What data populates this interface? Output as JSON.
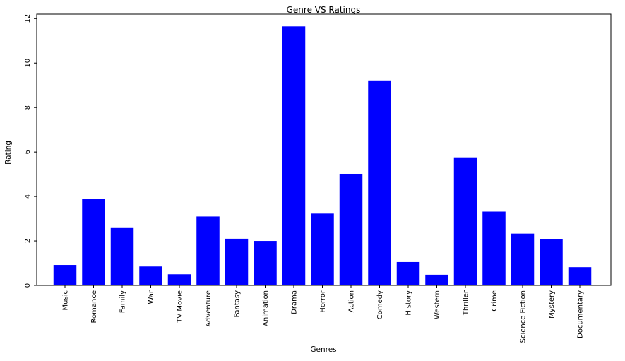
{
  "chart_data": {
    "type": "bar",
    "title": "Genre VS Ratings",
    "xlabel": "Genres",
    "ylabel": "Rating",
    "categories": [
      "Music",
      "Romance",
      "Family",
      "War",
      "TV Movie",
      "Adventure",
      "Fantasy",
      "Animation",
      "Drama",
      "Horror",
      "Action",
      "Comedy",
      "History",
      "Western",
      "Thriller",
      "Crime",
      "Science Fiction",
      "Mystery",
      "Documentary"
    ],
    "values": [
      0.92,
      3.9,
      2.58,
      0.85,
      0.5,
      3.1,
      2.1,
      2.0,
      11.65,
      3.23,
      5.02,
      9.22,
      1.05,
      0.48,
      5.76,
      3.32,
      2.33,
      2.07,
      0.82
    ],
    "ylim": [
      0,
      12.2
    ],
    "yticks": [
      0,
      2,
      4,
      6,
      8,
      10,
      12
    ],
    "grid": false,
    "colors": {
      "bar": "#0000ff",
      "axis": "#000000",
      "background": "#ffffff"
    }
  }
}
